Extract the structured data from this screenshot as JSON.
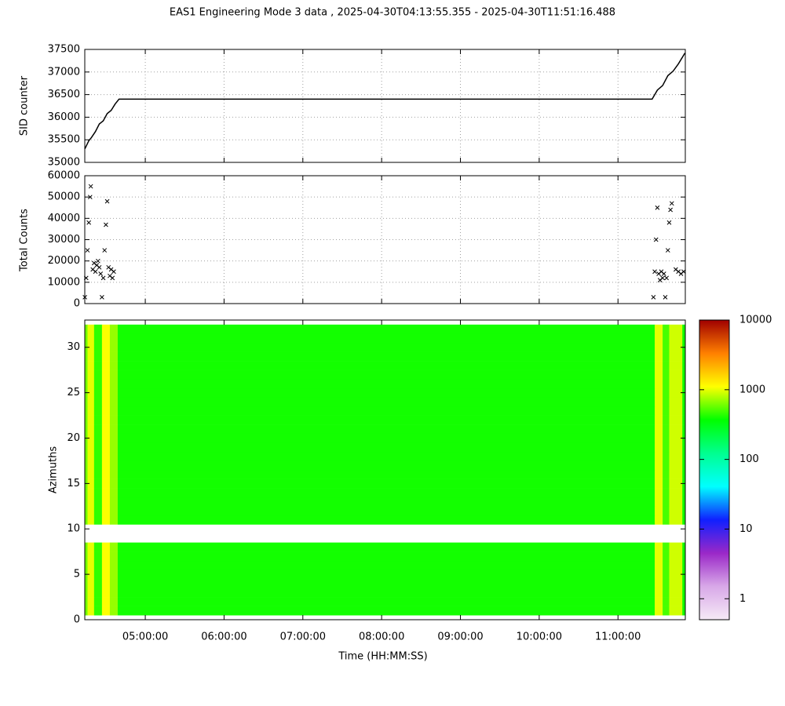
{
  "chart_data": [
    {
      "type": "line",
      "title": "EAS1  Engineering Mode 3 data ,  2025-04-30T04:13:55.355 - 2025-04-30T11:51:16.488",
      "y_label": "SID counter",
      "color": "#000000",
      "grid": true,
      "x": [
        "04:14:00",
        "04:17:00",
        "04:19:00",
        "04:22:00",
        "04:25:00",
        "04:28:00",
        "04:31:00",
        "04:34:00",
        "04:37:00",
        "04:40:00",
        "11:26:00",
        "11:30:00",
        "11:34:00",
        "11:38:00",
        "11:42:00",
        "11:46:00",
        "11:51:00"
      ],
      "values": [
        35300,
        35480,
        35550,
        35680,
        35850,
        35920,
        36080,
        36150,
        36290,
        36400,
        36400,
        36600,
        36700,
        36920,
        37020,
        37180,
        37420
      ],
      "ylim": [
        35000,
        37500
      ],
      "yticks": [
        35000,
        35500,
        36000,
        36500,
        37000,
        37500
      ]
    },
    {
      "type": "scatter",
      "y_label": "Total Counts",
      "color": "#000000",
      "grid": true,
      "x": [
        "04:14:00",
        "04:15:00",
        "04:16:00",
        "04:17:00",
        "04:18:00",
        "04:18:30",
        "04:20:00",
        "04:21:00",
        "04:22:00",
        "04:23:00",
        "04:24:00",
        "04:25:00",
        "04:26:00",
        "04:27:00",
        "04:28:00",
        "04:29:00",
        "04:30:00",
        "04:31:00",
        "04:32:00",
        "04:33:00",
        "04:34:00",
        "04:35:00",
        "04:36:00",
        "11:27:00",
        "11:28:00",
        "11:29:00",
        "11:30:00",
        "11:31:00",
        "11:32:00",
        "11:33:00",
        "11:34:00",
        "11:35:00",
        "11:36:00",
        "11:37:00",
        "11:38:00",
        "11:39:00",
        "11:40:00",
        "11:41:00",
        "11:44:00",
        "11:46:00",
        "11:48:00",
        "11:50:00"
      ],
      "values": [
        3000,
        12000,
        25000,
        38000,
        50000,
        55000,
        16000,
        19000,
        15000,
        18000,
        20000,
        17000,
        14000,
        3000,
        12000,
        25000,
        37000,
        48000,
        17000,
        13000,
        16000,
        12000,
        15000,
        3000,
        15000,
        30000,
        45000,
        14000,
        11000,
        15000,
        12000,
        14000,
        3000,
        12000,
        25000,
        38000,
        44000,
        47000,
        16000,
        15000,
        14000,
        15000
      ],
      "ylim": [
        0,
        60000
      ],
      "yticks": [
        0,
        10000,
        20000,
        30000,
        40000,
        50000,
        60000
      ]
    },
    {
      "type": "heatmap",
      "x_label": "Time (HH:MM:SS)",
      "y_label": "Azimuths",
      "grid": false,
      "log_color": true,
      "xlim": [
        "04:13:55.355",
        "11:51:16.488"
      ],
      "xticks": [
        "05:00:00",
        "06:00:00",
        "07:00:00",
        "08:00:00",
        "09:00:00",
        "10:00:00",
        "11:00:00"
      ],
      "x_edges": [
        "04:13:55.355",
        "04:16:00",
        "04:21:00",
        "04:27:00",
        "04:33:00",
        "04:39:00",
        "11:28:00",
        "11:34:00",
        "11:39:00",
        "11:49:00",
        "11:51:16.488"
      ],
      "y": [
        1,
        2,
        3,
        4,
        5,
        6,
        7,
        8,
        9,
        10,
        11,
        12,
        13,
        14,
        15,
        16,
        17,
        18,
        19,
        20,
        21,
        22,
        23,
        24,
        25,
        26,
        27,
        28,
        29,
        30,
        31,
        32
      ],
      "z": [
        [
          600,
          1000,
          450,
          1100,
          700,
          400,
          1000,
          500,
          900,
          400
        ],
        [
          600,
          1000,
          450,
          1100,
          700,
          400,
          1000,
          500,
          900,
          400
        ],
        [
          600,
          1000,
          450,
          1100,
          700,
          400,
          1000,
          500,
          900,
          400
        ],
        [
          600,
          1000,
          450,
          1100,
          700,
          400,
          1000,
          500,
          900,
          400
        ],
        [
          600,
          1000,
          450,
          1100,
          700,
          400,
          1000,
          500,
          900,
          400
        ],
        [
          600,
          1000,
          450,
          1100,
          700,
          400,
          1000,
          500,
          900,
          400
        ],
        [
          600,
          1000,
          450,
          1100,
          700,
          400,
          1000,
          500,
          900,
          400
        ],
        [
          600,
          1000,
          450,
          1100,
          700,
          400,
          1000,
          500,
          900,
          400
        ],
        [
          null,
          null,
          null,
          null,
          null,
          null,
          null,
          null,
          null,
          null
        ],
        [
          null,
          null,
          null,
          null,
          null,
          null,
          null,
          null,
          null,
          null
        ],
        [
          600,
          1000,
          450,
          1100,
          700,
          400,
          1000,
          500,
          900,
          400
        ],
        [
          600,
          1000,
          450,
          1100,
          700,
          400,
          1000,
          500,
          900,
          400
        ],
        [
          600,
          1000,
          450,
          1100,
          700,
          400,
          1000,
          500,
          900,
          400
        ],
        [
          600,
          1000,
          450,
          1100,
          700,
          400,
          1000,
          500,
          900,
          400
        ],
        [
          600,
          1000,
          450,
          1100,
          700,
          400,
          1000,
          500,
          900,
          400
        ],
        [
          600,
          1000,
          450,
          1100,
          700,
          400,
          1000,
          500,
          900,
          400
        ],
        [
          600,
          1000,
          450,
          1100,
          700,
          400,
          1000,
          500,
          900,
          400
        ],
        [
          600,
          1000,
          450,
          1100,
          700,
          400,
          1000,
          500,
          900,
          400
        ],
        [
          600,
          1000,
          450,
          1100,
          700,
          400,
          1000,
          500,
          900,
          400
        ],
        [
          600,
          1000,
          450,
          1100,
          700,
          400,
          1000,
          500,
          900,
          400
        ],
        [
          600,
          1000,
          450,
          1100,
          700,
          400,
          1000,
          500,
          900,
          400
        ],
        [
          600,
          1000,
          450,
          1100,
          700,
          400,
          1000,
          500,
          900,
          400
        ],
        [
          600,
          1000,
          450,
          1100,
          700,
          400,
          1000,
          500,
          900,
          400
        ],
        [
          600,
          1000,
          450,
          1100,
          700,
          400,
          1000,
          500,
          900,
          400
        ],
        [
          600,
          1000,
          450,
          1100,
          700,
          400,
          1000,
          500,
          900,
          400
        ],
        [
          600,
          1000,
          450,
          1100,
          700,
          400,
          1000,
          500,
          900,
          400
        ],
        [
          600,
          1000,
          450,
          1100,
          700,
          400,
          1000,
          500,
          900,
          400
        ],
        [
          600,
          1000,
          450,
          1100,
          700,
          400,
          1000,
          500,
          900,
          400
        ],
        [
          600,
          1000,
          450,
          1100,
          700,
          400,
          1000,
          500,
          900,
          400
        ],
        [
          600,
          1000,
          450,
          1100,
          700,
          400,
          1000,
          500,
          900,
          400
        ],
        [
          600,
          1000,
          450,
          1100,
          700,
          400,
          1000,
          500,
          900,
          400
        ],
        [
          600,
          1000,
          450,
          1100,
          700,
          400,
          1000,
          500,
          900,
          400
        ]
      ],
      "ylim": [
        0,
        33
      ],
      "yticks": [
        0,
        5,
        10,
        15,
        20,
        25,
        30
      ],
      "clim": [
        0.5,
        10000
      ],
      "cticks": [
        1,
        10,
        100,
        1000,
        10000
      ],
      "colorscale": [
        "#f6eaf6",
        "#d8a8e8",
        "#9a28c8",
        "#1020ff",
        "#00ffff",
        "#00ff90",
        "#00ff00",
        "#ffff00",
        "#ff8000",
        "#a00000"
      ]
    }
  ]
}
